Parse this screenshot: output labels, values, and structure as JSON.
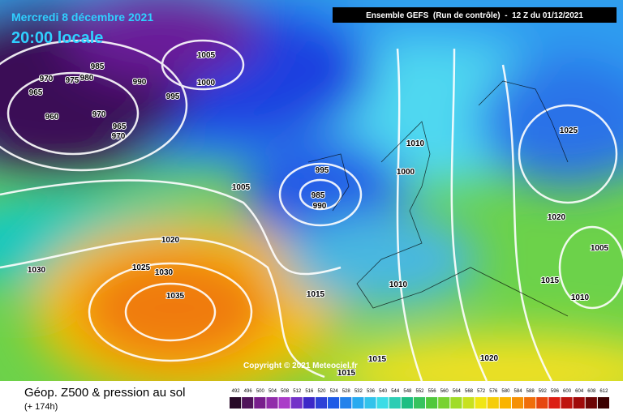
{
  "header": {
    "date": "Mercredi 8 décembre 2021",
    "time": "20:00 locale",
    "model": "Ensemble GEFS  (Run de contrôle)  -  12 Z du 01/12/2021"
  },
  "isobar_labels": [
    "985",
    "970",
    "975",
    "980",
    "990",
    "1005",
    "1000",
    "995",
    "965",
    "960",
    "970",
    "965",
    "970",
    "1005",
    "995",
    "985",
    "990",
    "1010",
    "1000",
    "1025",
    "1020",
    "1005",
    "1015",
    "1010",
    "1020",
    "1030",
    "1025",
    "1030",
    "1035",
    "1015",
    "1010",
    "1015",
    "1015",
    "1020"
  ],
  "copyright": "Copyright © 2021 Meteociel.fr",
  "footer": {
    "title": "Géop. Z500 & pression au sol",
    "lead": "(+ 174h)"
  },
  "colorbar": {
    "labels": [
      492,
      496,
      500,
      504,
      508,
      512,
      516,
      520,
      524,
      528,
      532,
      536,
      540,
      544,
      548,
      552,
      556,
      560,
      564,
      568,
      572,
      576,
      580,
      584,
      588,
      592,
      596,
      600,
      604,
      608,
      612
    ]
  }
}
